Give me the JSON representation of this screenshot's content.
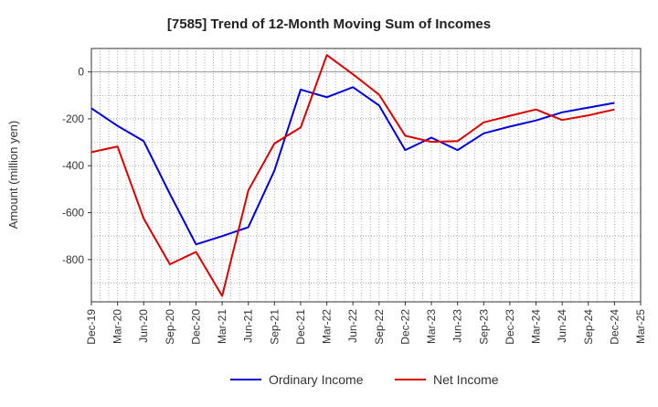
{
  "chart_data": {
    "type": "line",
    "title": "[7585]  Trend of 12-Month Moving Sum of Incomes",
    "xlabel": "",
    "ylabel": "Amount (million yen)",
    "ylim": [
      -980,
      100
    ],
    "yticks": [
      0,
      -200,
      -400,
      -600,
      -800
    ],
    "ytick_labels": [
      "0",
      "-200",
      "-400",
      "-600",
      "-800"
    ],
    "categories": [
      "Dec-19",
      "Mar-20",
      "Jun-20",
      "Sep-20",
      "Dec-20",
      "Mar-21",
      "Jun-21",
      "Sep-21",
      "Dec-21",
      "Mar-22",
      "Jun-22",
      "Sep-22",
      "Dec-22",
      "Mar-23",
      "Jun-23",
      "Sep-23",
      "Dec-23",
      "Mar-24",
      "Jun-24",
      "Sep-24",
      "Dec-24",
      "Mar-25"
    ],
    "grid": true,
    "legend_position": "bottom-center",
    "series": [
      {
        "name": "Ordinary Income",
        "color": "#0000dd",
        "values": [
          -155,
          -230,
          -295,
          -520,
          -735,
          -700,
          -662,
          -420,
          -75,
          -108,
          -65,
          -143,
          -333,
          -280,
          -333,
          -262,
          -233,
          -207,
          -172,
          -152,
          -132,
          null
        ]
      },
      {
        "name": "Net Income",
        "color": "#dd0000",
        "values": [
          -342,
          -318,
          -625,
          -820,
          -767,
          -955,
          -505,
          -305,
          -237,
          72,
          -10,
          -97,
          -272,
          -298,
          -295,
          -215,
          -187,
          -160,
          -205,
          -185,
          -160,
          null
        ]
      }
    ]
  }
}
